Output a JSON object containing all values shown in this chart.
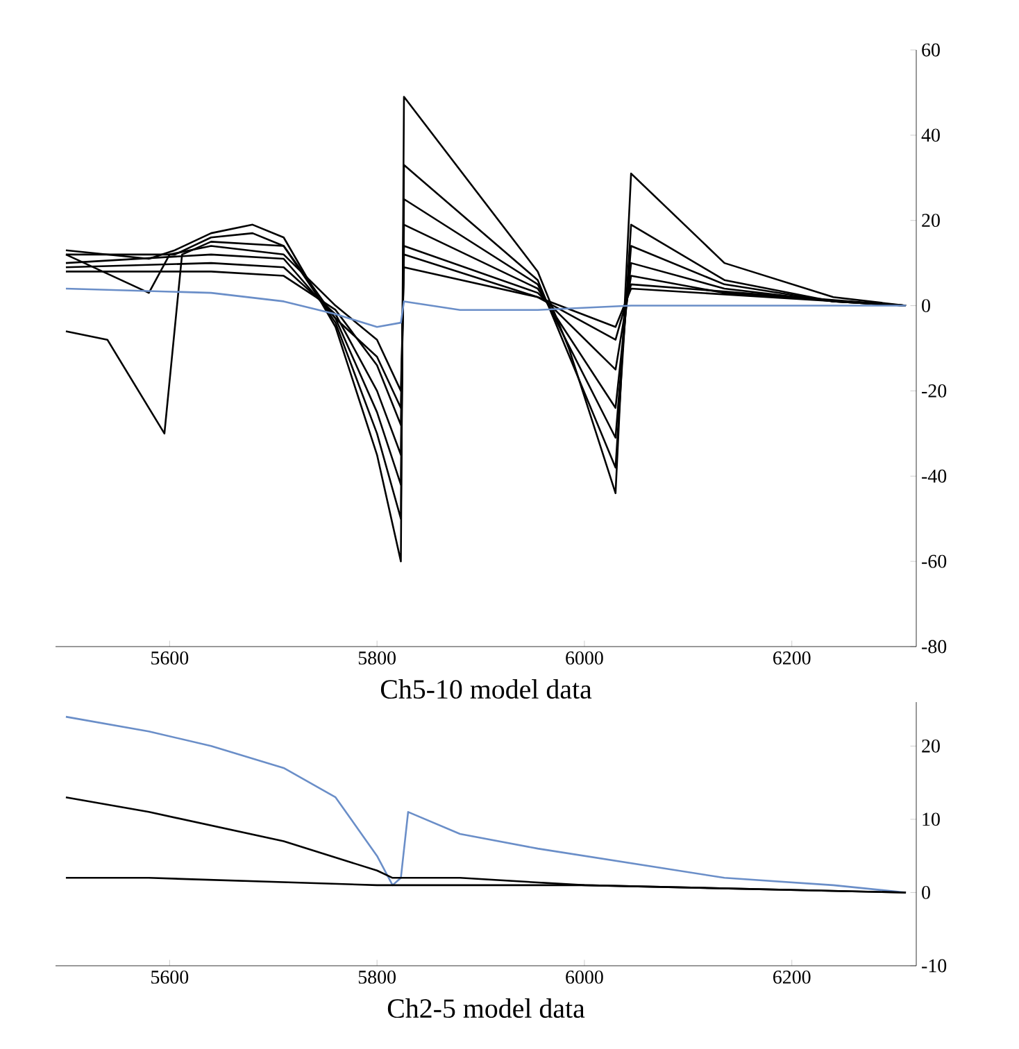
{
  "chart_data": [
    {
      "type": "line",
      "title": "Ch5-10 model data",
      "xlim": [
        5490,
        6320
      ],
      "xticks": [
        5600,
        5800,
        6000,
        6200
      ],
      "ylim": [
        -80,
        60
      ],
      "yticks": [
        -80,
        -60,
        -40,
        -20,
        0,
        20,
        40,
        60
      ],
      "series": [
        {
          "color": "#000000",
          "x": [
            5500,
            5580,
            5605,
            5640,
            5680,
            5710,
            5760,
            5800,
            5823,
            5826,
            5955,
            5985,
            6030,
            6045,
            6135,
            6240,
            6310
          ],
          "values": [
            13,
            11,
            13,
            17,
            19,
            16,
            -5,
            -35,
            -60,
            49,
            8,
            -10,
            -44,
            31,
            10,
            2,
            0
          ]
        },
        {
          "color": "#000000",
          "x": [
            5500,
            5605,
            5640,
            5680,
            5710,
            5760,
            5800,
            5823,
            5826,
            5955,
            6030,
            6045,
            6135,
            6240,
            6310
          ],
          "values": [
            12,
            12,
            16,
            17,
            14,
            -4,
            -30,
            -50,
            33,
            6,
            -38,
            19,
            6,
            1,
            0
          ]
        },
        {
          "color": "#000000",
          "x": [
            5500,
            5640,
            5710,
            5760,
            5800,
            5823,
            5826,
            5955,
            6030,
            6045,
            6135,
            6240,
            6310
          ],
          "values": [
            10,
            12,
            11,
            -3,
            -25,
            -42,
            25,
            5,
            -31,
            14,
            5,
            1,
            0
          ]
        },
        {
          "color": "#000000",
          "x": [
            5500,
            5640,
            5710,
            5760,
            5800,
            5823,
            5826,
            5955,
            6030,
            6045,
            6135,
            6240,
            6310
          ],
          "values": [
            9,
            10,
            9,
            -2,
            -20,
            -35,
            19,
            4,
            -24,
            10,
            4,
            1,
            0
          ]
        },
        {
          "color": "#000000",
          "x": [
            5500,
            5640,
            5710,
            5760,
            5800,
            5823,
            5826,
            5955,
            6030,
            6045,
            6135,
            6310
          ],
          "values": [
            8,
            8,
            7,
            -1,
            -14,
            -28,
            14,
            3,
            -15,
            7,
            3,
            0
          ]
        },
        {
          "color": "#000000",
          "x": [
            5500,
            5580,
            5600,
            5640,
            5710,
            5760,
            5800,
            5823,
            5826,
            5955,
            6030,
            6045,
            6310
          ],
          "values": [
            12,
            3,
            12,
            14,
            12,
            0,
            -8,
            -20,
            9,
            2,
            -5,
            4,
            0
          ]
        },
        {
          "color": "#000000",
          "x": [
            5500,
            5540,
            5595,
            5612,
            5640,
            5710,
            5760,
            5800,
            5823,
            5826,
            5955,
            6030,
            6045,
            6310
          ],
          "values": [
            -6,
            -8,
            -30,
            12,
            15,
            14,
            -3,
            -12,
            -24,
            12,
            2,
            -8,
            5,
            0
          ]
        },
        {
          "color": "#6a8ec8",
          "x": [
            5500,
            5640,
            5710,
            5760,
            5800,
            5823,
            5826,
            5880,
            5955,
            6045,
            6310
          ],
          "values": [
            4,
            3,
            1,
            -2,
            -5,
            -4,
            1,
            -1,
            -1,
            0,
            0
          ]
        }
      ]
    },
    {
      "type": "line",
      "title": "Ch2-5 model data",
      "xlim": [
        5490,
        6320
      ],
      "xticks": [
        5600,
        5800,
        6000,
        6200
      ],
      "ylim": [
        -10,
        26
      ],
      "yticks": [
        -10,
        0,
        10,
        20
      ],
      "series": [
        {
          "color": "#6a8ec8",
          "x": [
            5500,
            5580,
            5640,
            5710,
            5760,
            5800,
            5815,
            5823,
            5830,
            5880,
            5955,
            6045,
            6135,
            6240,
            6310
          ],
          "values": [
            24,
            22,
            20,
            17,
            13,
            5,
            1,
            2,
            11,
            8,
            6,
            4,
            2,
            1,
            0
          ]
        },
        {
          "color": "#000000",
          "x": [
            5500,
            5580,
            5710,
            5800,
            5815,
            5880,
            6000,
            6310
          ],
          "values": [
            13,
            11,
            7,
            3,
            2,
            2,
            1,
            0
          ]
        },
        {
          "color": "#000000",
          "x": [
            5500,
            5580,
            5800,
            6000,
            6310
          ],
          "values": [
            2,
            2,
            1,
            1,
            0
          ]
        }
      ]
    }
  ]
}
